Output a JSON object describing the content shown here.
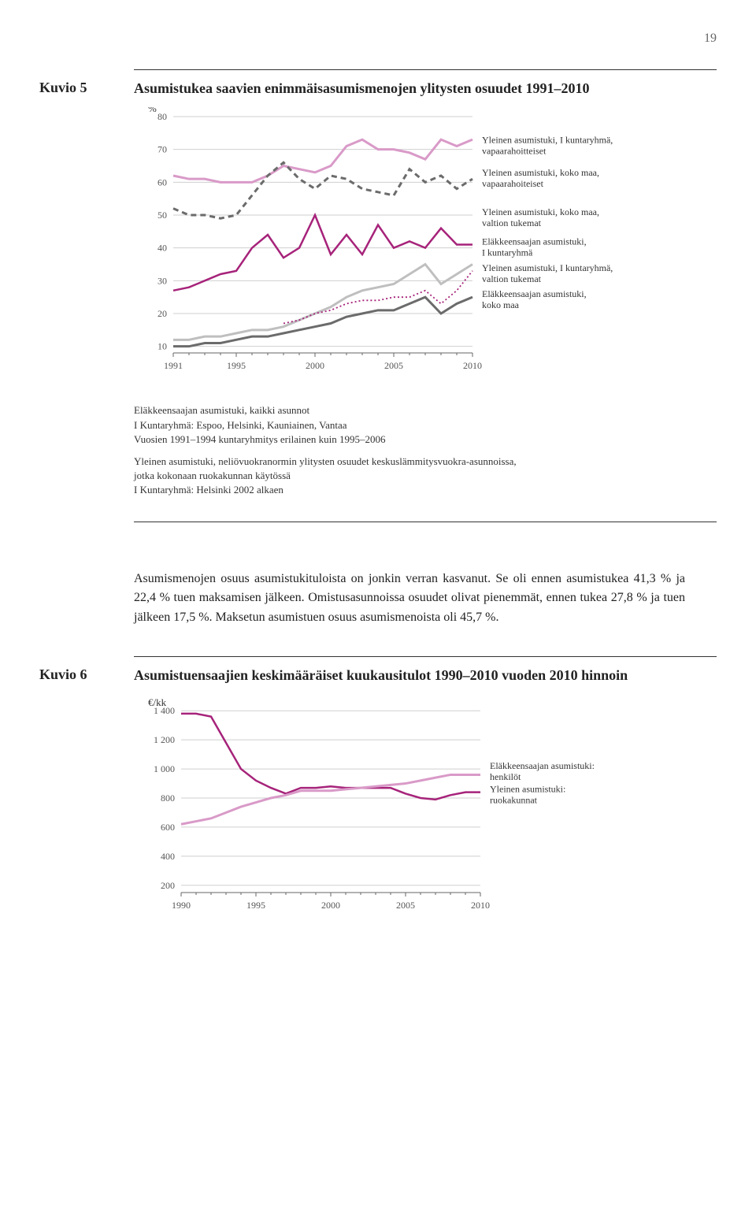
{
  "page_number": "19",
  "kuvio5": {
    "label": "Kuvio 5",
    "title": "Asumistukea saavien enimmäisasumismenojen ylitysten osuudet 1991–2010",
    "y_axis_label": "%",
    "x_ticks": [
      "1991",
      "1995",
      "2000",
      "2005",
      "2010"
    ],
    "y_ticks": [
      10,
      20,
      30,
      40,
      50,
      60,
      70,
      80
    ],
    "ylim": [
      8,
      80
    ],
    "colors": {
      "magenta": "#a6237a",
      "pink": "#d99ac8",
      "dark_grey": "#6b6b6b",
      "light_grey": "#bfbfbf",
      "grid": "#cfcfcf",
      "axis": "#666666"
    },
    "series": [
      {
        "name": "Yleinen asumistuki, I kuntaryhmä, vapaarahoitteiset",
        "color": "#d99ac8",
        "width": 3,
        "dash": null,
        "label_y": 72,
        "data": [
          [
            1991,
            62
          ],
          [
            1992,
            61
          ],
          [
            1993,
            61
          ],
          [
            1994,
            60
          ],
          [
            1995,
            60
          ],
          [
            1996,
            60
          ],
          [
            1997,
            62
          ],
          [
            1998,
            65
          ],
          [
            1999,
            64
          ],
          [
            2000,
            63
          ],
          [
            2001,
            65
          ],
          [
            2002,
            71
          ],
          [
            2003,
            73
          ],
          [
            2004,
            70
          ],
          [
            2005,
            70
          ],
          [
            2006,
            69
          ],
          [
            2007,
            67
          ],
          [
            2008,
            73
          ],
          [
            2009,
            71
          ],
          [
            2010,
            73
          ]
        ]
      },
      {
        "name": "Yleinen asumistuki, koko maa, vapaarahoiteiset",
        "color": "#6b6b6b",
        "width": 3,
        "dash": "7,5",
        "label_y": 62,
        "data": [
          [
            1991,
            52
          ],
          [
            1992,
            50
          ],
          [
            1993,
            50
          ],
          [
            1994,
            49
          ],
          [
            1995,
            50
          ],
          [
            1996,
            56
          ],
          [
            1997,
            62
          ],
          [
            1998,
            66
          ],
          [
            1999,
            61
          ],
          [
            2000,
            58
          ],
          [
            2001,
            62
          ],
          [
            2002,
            61
          ],
          [
            2003,
            58
          ],
          [
            2004,
            57
          ],
          [
            2005,
            56
          ],
          [
            2006,
            64
          ],
          [
            2007,
            60
          ],
          [
            2008,
            62
          ],
          [
            2009,
            58
          ],
          [
            2010,
            61
          ]
        ]
      },
      {
        "name": "Yleinen asumistuki, koko maa, valtion tukemat",
        "color": "#a6237a",
        "width": 2.5,
        "dash": null,
        "label_y": 50,
        "data": [
          [
            1991,
            27
          ],
          [
            1992,
            28
          ],
          [
            1993,
            30
          ],
          [
            1994,
            32
          ],
          [
            1995,
            33
          ],
          [
            1996,
            40
          ],
          [
            1997,
            44
          ],
          [
            1998,
            37
          ],
          [
            1999,
            40
          ],
          [
            2000,
            50
          ],
          [
            2001,
            38
          ],
          [
            2002,
            44
          ],
          [
            2003,
            38
          ],
          [
            2004,
            47
          ],
          [
            2005,
            40
          ],
          [
            2006,
            42
          ],
          [
            2007,
            40
          ],
          [
            2008,
            46
          ],
          [
            2009,
            41
          ],
          [
            2010,
            41
          ]
        ]
      },
      {
        "name": "Eläkkeensaajan asumistuki, I kuntaryhmä",
        "color": "#bfbfbf",
        "width": 3,
        "dash": null,
        "label_y": 41,
        "data": [
          [
            1991,
            12
          ],
          [
            1992,
            12
          ],
          [
            1993,
            13
          ],
          [
            1994,
            13
          ],
          [
            1995,
            14
          ],
          [
            1996,
            15
          ],
          [
            1997,
            15
          ],
          [
            1998,
            16
          ],
          [
            1999,
            18
          ],
          [
            2000,
            20
          ],
          [
            2001,
            22
          ],
          [
            2002,
            25
          ],
          [
            2003,
            27
          ],
          [
            2004,
            28
          ],
          [
            2005,
            29
          ],
          [
            2006,
            32
          ],
          [
            2007,
            35
          ],
          [
            2008,
            29
          ],
          [
            2009,
            32
          ],
          [
            2010,
            35
          ]
        ]
      },
      {
        "name": "Yleinen asumistuki, I kuntaryhmä, valtion tukemat",
        "color": "#a6237a",
        "width": 1.8,
        "dash": "2,3",
        "label_y": 33,
        "data": [
          [
            1998,
            17
          ],
          [
            1999,
            18
          ],
          [
            2000,
            20
          ],
          [
            2001,
            21
          ],
          [
            2002,
            23
          ],
          [
            2003,
            24
          ],
          [
            2004,
            24
          ],
          [
            2005,
            25
          ],
          [
            2006,
            25
          ],
          [
            2007,
            27
          ],
          [
            2008,
            23
          ],
          [
            2009,
            27
          ],
          [
            2010,
            33
          ]
        ]
      },
      {
        "name": "Eläkkeensaajan asumistuki, koko maa",
        "color": "#6b6b6b",
        "width": 3,
        "dash": null,
        "label_y": 25,
        "data": [
          [
            1991,
            10
          ],
          [
            1992,
            10
          ],
          [
            1993,
            11
          ],
          [
            1994,
            11
          ],
          [
            1995,
            12
          ],
          [
            1996,
            13
          ],
          [
            1997,
            13
          ],
          [
            1998,
            14
          ],
          [
            1999,
            15
          ],
          [
            2000,
            16
          ],
          [
            2001,
            17
          ],
          [
            2002,
            19
          ],
          [
            2003,
            20
          ],
          [
            2004,
            21
          ],
          [
            2005,
            21
          ],
          [
            2006,
            23
          ],
          [
            2007,
            25
          ],
          [
            2008,
            20
          ],
          [
            2009,
            23
          ],
          [
            2010,
            25
          ]
        ]
      }
    ],
    "note1_l1": "Eläkkeensaajan asumistuki, kaikki asunnot",
    "note1_l2": "I Kuntaryhmä: Espoo, Helsinki, Kauniainen, Vantaa",
    "note1_l3": "Vuosien 1991–1994 kuntaryhmitys erilainen kuin 1995–2006",
    "note2_l1": "Yleinen asumistuki, neliövuokranormin ylitysten osuudet keskuslämmitysvuokra-asunnoissa,",
    "note2_l2": "jotka kokonaan ruokakunnan käytössä",
    "note2_l3": "I Kuntaryhmä: Helsinki 2002 alkaen"
  },
  "body_paragraph": "Asumismenojen osuus asumistukituloista on jonkin verran kasvanut. Se oli ennen asumistukea 41,3 % ja 22,4 % tuen maksamisen jälkeen. Omistusasunnoissa osuudet olivat pienemmät, ennen tukea 27,8 % ja tuen jälkeen 17,5 %. Maksetun asumistuen osuus asumismenoista oli 45,7 %.",
  "kuvio6": {
    "label": "Kuvio 6",
    "title": "Asumistuensaajien keskimääräiset kuukausitulot 1990–2010 vuoden 2010 hinnoin",
    "y_axis_label": "€/kk",
    "x_ticks": [
      "1990",
      "1995",
      "2000",
      "2005",
      "2010"
    ],
    "y_ticks": [
      200,
      400,
      600,
      800,
      1000,
      1200,
      1400
    ],
    "ylim": [
      150,
      1450
    ],
    "colors": {
      "magenta": "#a6237a",
      "pink": "#d99ac8",
      "grid": "#cfcfcf",
      "axis": "#666666"
    },
    "series": [
      {
        "name": "Eläkkeensaajan asumistuki: henkilöt",
        "name_l1": "Eläkkeensaajan asumistuki:",
        "name_l2": "henkilöt",
        "color": "#a6237a",
        "width": 2.5,
        "label_y": 1000,
        "data": [
          [
            1990,
            1380
          ],
          [
            1991,
            1380
          ],
          [
            1992,
            1360
          ],
          [
            1993,
            1180
          ],
          [
            1994,
            1000
          ],
          [
            1995,
            920
          ],
          [
            1996,
            870
          ],
          [
            1997,
            830
          ],
          [
            1998,
            870
          ],
          [
            1999,
            870
          ],
          [
            2000,
            880
          ],
          [
            2001,
            870
          ],
          [
            2002,
            870
          ],
          [
            2003,
            870
          ],
          [
            2004,
            870
          ],
          [
            2005,
            830
          ],
          [
            2006,
            800
          ],
          [
            2007,
            790
          ],
          [
            2008,
            820
          ],
          [
            2009,
            840
          ],
          [
            2010,
            840
          ]
        ]
      },
      {
        "name": "Yleinen asumistuki: ruokakunnat",
        "name_l1": "Yleinen asumistuki:",
        "name_l2": "ruokakunnat",
        "color": "#d99ac8",
        "width": 3,
        "label_y": 840,
        "data": [
          [
            1990,
            620
          ],
          [
            1991,
            640
          ],
          [
            1992,
            660
          ],
          [
            1993,
            700
          ],
          [
            1994,
            740
          ],
          [
            1995,
            770
          ],
          [
            1996,
            800
          ],
          [
            1997,
            820
          ],
          [
            1998,
            850
          ],
          [
            1999,
            850
          ],
          [
            2000,
            850
          ],
          [
            2001,
            860
          ],
          [
            2002,
            870
          ],
          [
            2003,
            880
          ],
          [
            2004,
            890
          ],
          [
            2005,
            900
          ],
          [
            2006,
            920
          ],
          [
            2007,
            940
          ],
          [
            2008,
            960
          ],
          [
            2009,
            960
          ],
          [
            2010,
            960
          ]
        ]
      }
    ]
  }
}
